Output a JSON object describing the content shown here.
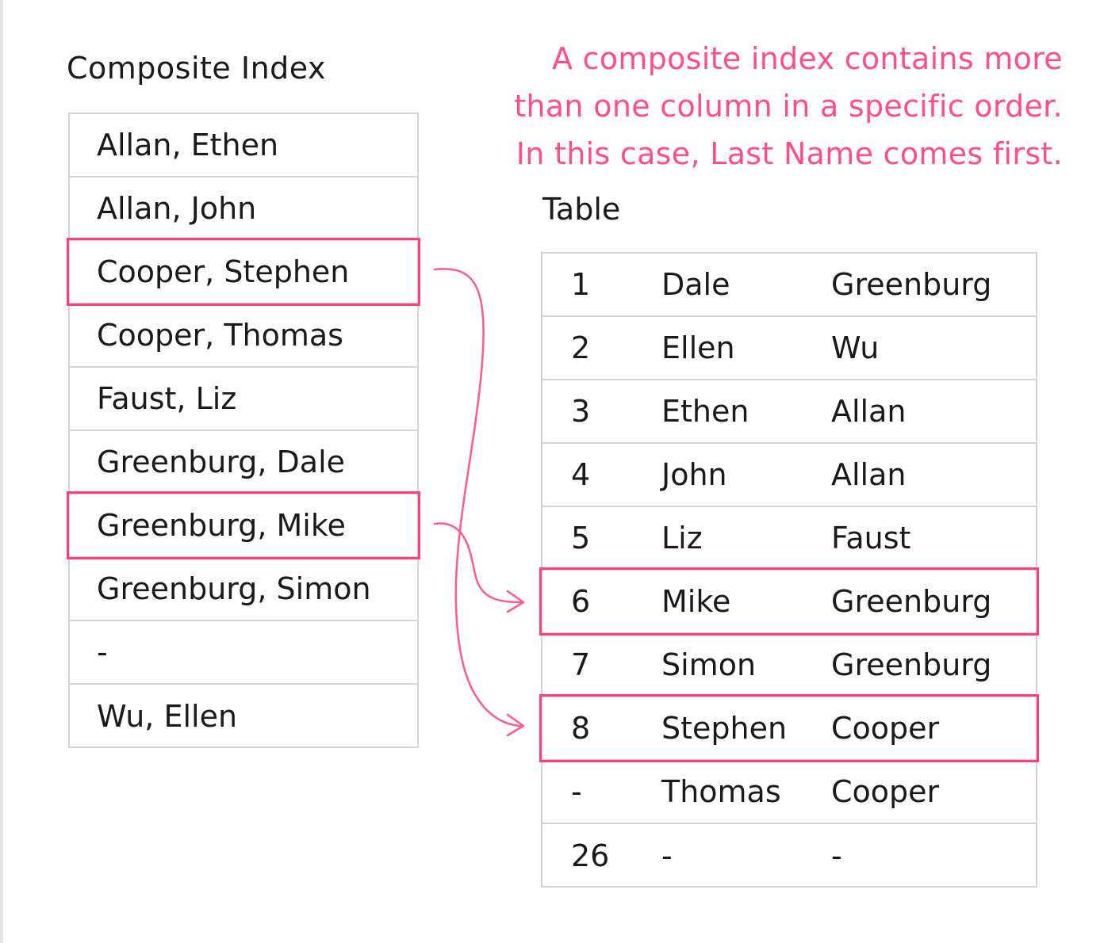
{
  "note": {
    "line1": "A composite index contains more",
    "line2": "than one column in a specific order.",
    "line3": "In this case, Last Name comes first."
  },
  "composite_index": {
    "title": "Composite Index",
    "rows": [
      "Allan, Ethen",
      "Allan, John",
      "Cooper, Stephen",
      "Cooper, Thomas",
      "Faust, Liz",
      "Greenburg, Dale",
      "Greenburg, Mike",
      "Greenburg, Simon",
      "-",
      "Wu, Ellen"
    ],
    "highlighted_rows": [
      2,
      6
    ]
  },
  "table": {
    "title": "Table",
    "rows": [
      [
        "1",
        "Dale",
        "Greenburg"
      ],
      [
        "2",
        "Ellen",
        "Wu"
      ],
      [
        "3",
        "Ethen",
        "Allan"
      ],
      [
        "4",
        "John",
        "Allan"
      ],
      [
        "5",
        "Liz",
        "Faust"
      ],
      [
        "6",
        "Mike",
        "Greenburg"
      ],
      [
        "7",
        "Simon",
        "Greenburg"
      ],
      [
        "8",
        "Stephen",
        "Cooper"
      ],
      [
        "-",
        "Thomas",
        "Cooper"
      ],
      [
        "26",
        "-",
        "-"
      ]
    ],
    "highlighted_rows": [
      5,
      7
    ]
  },
  "arrows": [
    {
      "from_index_row": 2,
      "to_table_row": 7
    },
    {
      "from_index_row": 6,
      "to_table_row": 5
    }
  ],
  "colors": {
    "accent": "#ff3f7c",
    "border": "#d4d4d4",
    "text": "#1a1a1a"
  }
}
